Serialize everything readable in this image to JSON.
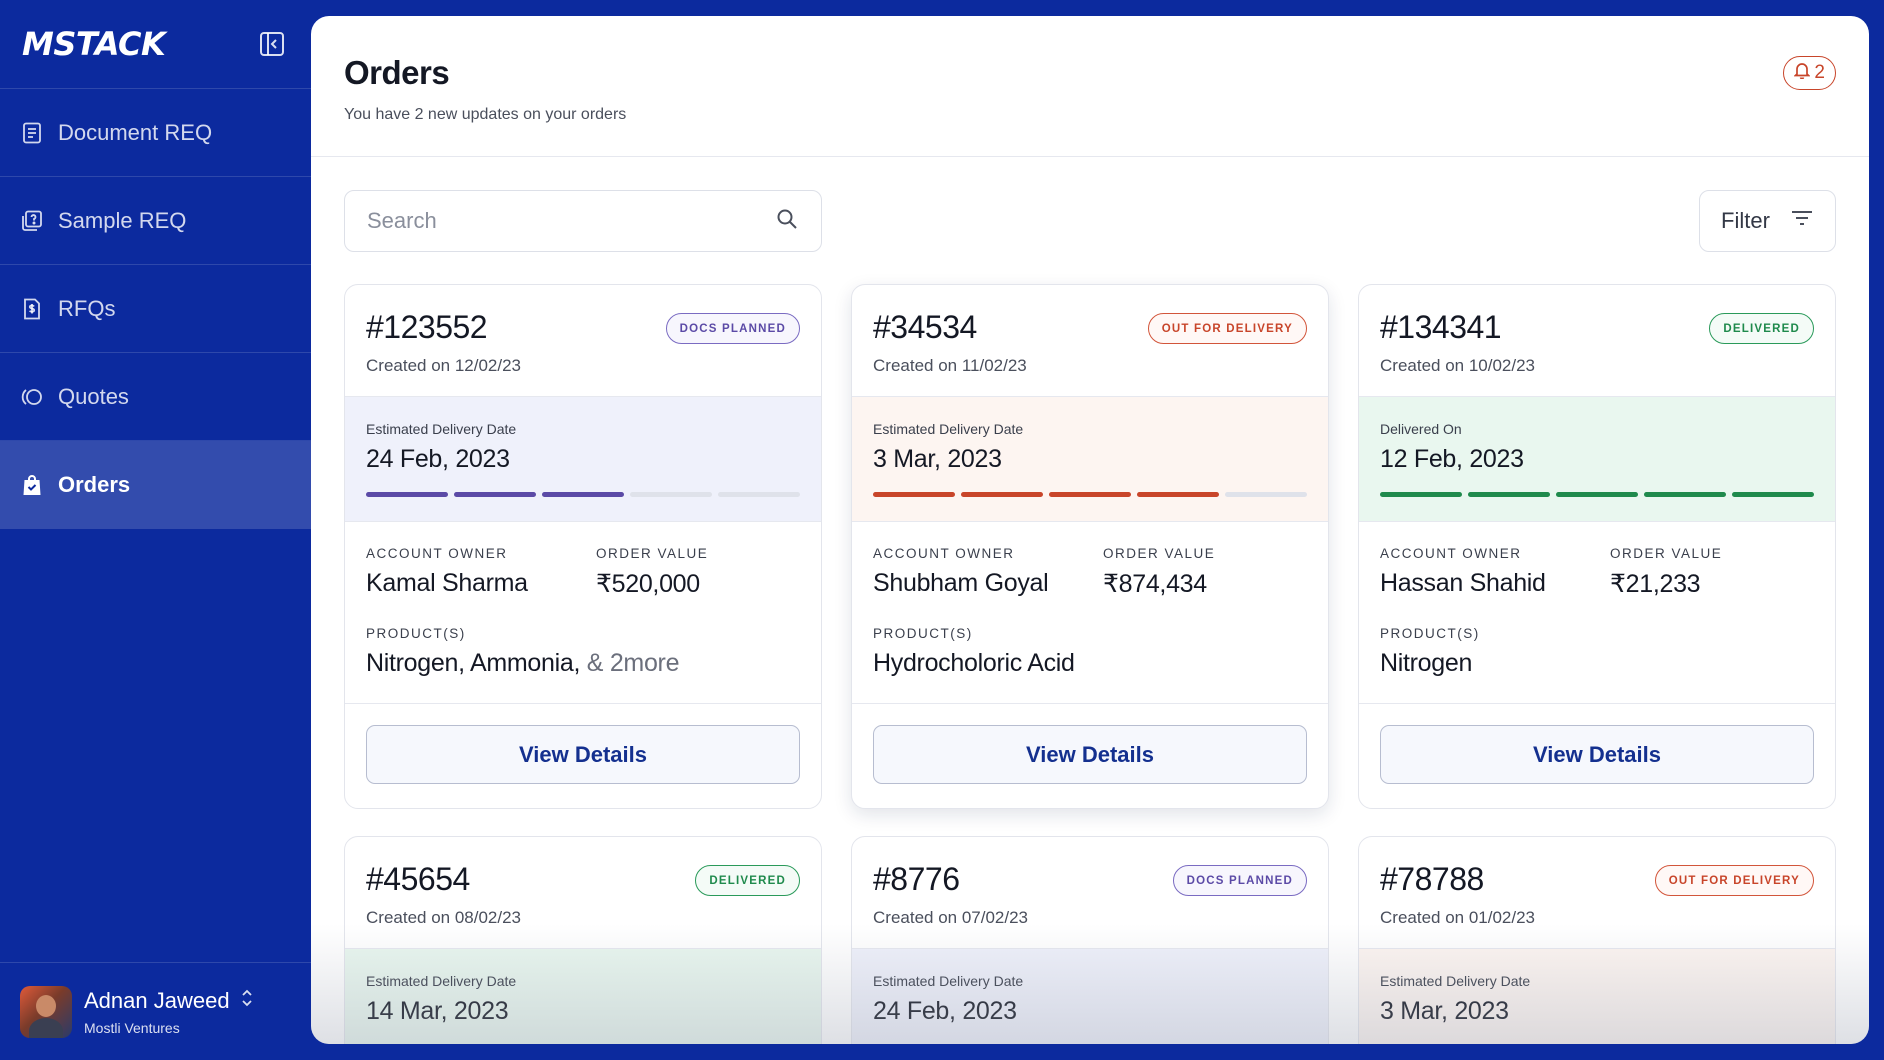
{
  "sidebar": {
    "logo": "MSTACK",
    "items": [
      {
        "label": "Document REQ",
        "icon": "document-icon"
      },
      {
        "label": "Sample REQ",
        "icon": "sample-icon"
      },
      {
        "label": "RFQs",
        "icon": "rfq-icon"
      },
      {
        "label": "Quotes",
        "icon": "quotes-icon"
      },
      {
        "label": "Orders",
        "icon": "orders-bag-icon",
        "active": true
      }
    ],
    "user": {
      "name": "Adnan Jaweed",
      "org": "Mostli Ventures"
    }
  },
  "header": {
    "title": "Orders",
    "subtitle": "You have 2 new updates on your orders",
    "notification_count": "2"
  },
  "search": {
    "placeholder": "Search"
  },
  "filter": {
    "label": "Filter"
  },
  "colors": {
    "sidebar_bg": "#0c2a9e",
    "docs_planned": "#5b4aa6",
    "out_for_delivery": "#c8452a",
    "delivered": "#1f8a4c"
  },
  "labels": {
    "account_owner": "ACCOUNT OWNER",
    "order_value": "ORDER VALUE",
    "products": "PRODUCT(S)",
    "view_details": "View Details"
  },
  "orders": [
    {
      "id": "#123552",
      "created": "Created on 12/02/23",
      "status": "DOCS PLANNED",
      "status_kind": "docs",
      "delivery_label": "Estimated Delivery Date",
      "delivery_date": "24 Feb, 2023",
      "progress_filled": 3,
      "progress_total": 5,
      "owner": "Kamal Sharma",
      "value": "₹520,000",
      "products": "Nitrogen, Ammonia,",
      "products_more": " & 2more"
    },
    {
      "id": "#34534",
      "created": "Created on 11/02/23",
      "status": "OUT FOR DELIVERY",
      "status_kind": "out",
      "delivery_label": "Estimated Delivery Date",
      "delivery_date": "3 Mar, 2023",
      "progress_filled": 4,
      "progress_total": 5,
      "owner": "Shubham Goyal",
      "value": "₹874,434",
      "products": "Hydrocholoric Acid",
      "products_more": ""
    },
    {
      "id": "#134341",
      "created": "Created on 10/02/23",
      "status": "DELIVERED",
      "status_kind": "delivered",
      "delivery_label": "Delivered On",
      "delivery_date": "12 Feb, 2023",
      "progress_filled": 5,
      "progress_total": 5,
      "owner": "Hassan Shahid",
      "value": "₹21,233",
      "products": "Nitrogen",
      "products_more": ""
    },
    {
      "id": "#45654",
      "created": "Created on 08/02/23",
      "status": "DELIVERED",
      "status_kind": "delivered",
      "delivery_label": "Estimated Delivery Date",
      "delivery_date": "14 Mar, 2023"
    },
    {
      "id": "#8776",
      "created": "Created on 07/02/23",
      "status": "DOCS PLANNED",
      "status_kind": "docs",
      "delivery_label": "Estimated Delivery Date",
      "delivery_date": "24 Feb, 2023"
    },
    {
      "id": "#78788",
      "created": "Created on 01/02/23",
      "status": "OUT FOR DELIVERY",
      "status_kind": "out",
      "delivery_label": "Estimated Delivery Date",
      "delivery_date": "3 Mar, 2023"
    }
  ]
}
